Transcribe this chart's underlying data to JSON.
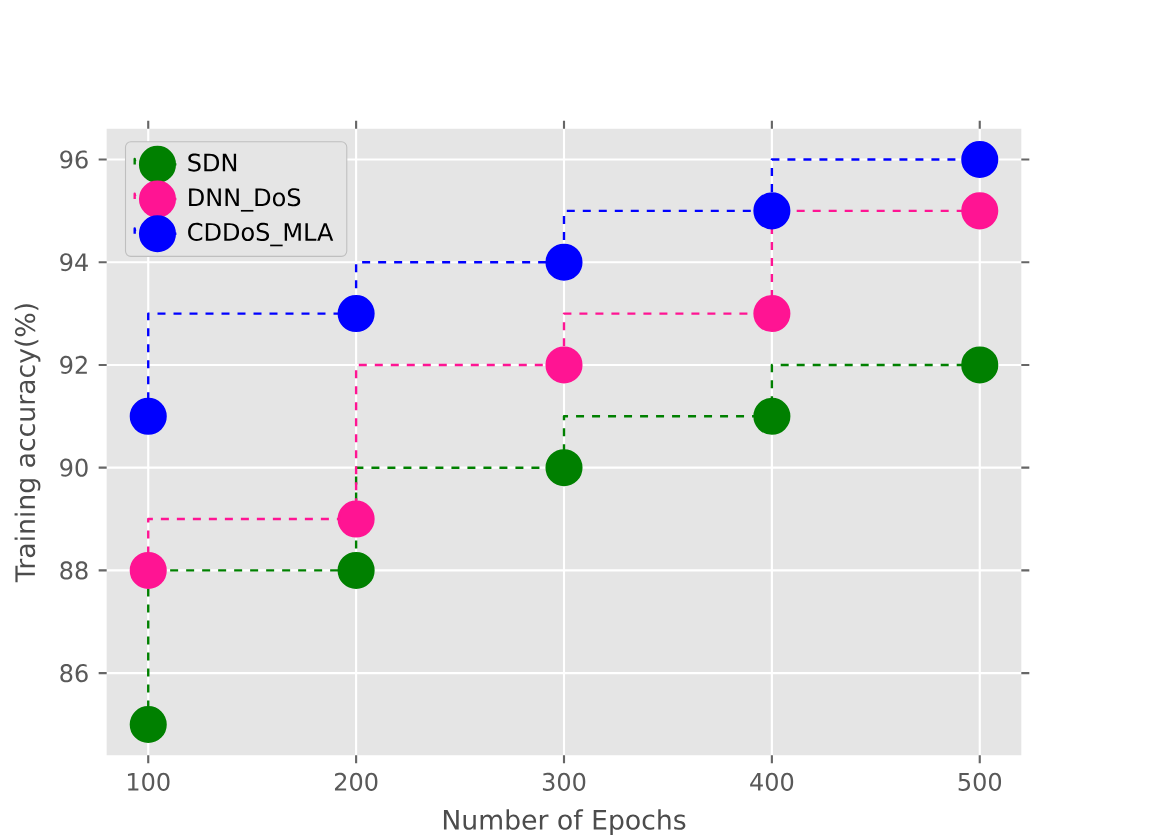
{
  "chart_data": {
    "type": "step",
    "xlabel": "Number of Epochs",
    "ylabel": "Training accuracy(%)",
    "x": [
      100,
      200,
      300,
      400,
      500
    ],
    "series": [
      {
        "name": "SDN",
        "color": "#008000",
        "values": [
          85,
          88,
          90,
          91,
          92
        ]
      },
      {
        "name": "DNN_DoS",
        "color": "#ff1493",
        "values": [
          88,
          89,
          92,
          93,
          95
        ]
      },
      {
        "name": "CDDoS_MLA",
        "color": "#0000ff",
        "values": [
          91,
          93,
          94,
          95,
          96
        ]
      }
    ],
    "xlim": [
      80,
      520
    ],
    "ylim": [
      84.4,
      96.6
    ],
    "xticks": [
      100,
      200,
      300,
      400,
      500
    ],
    "yticks": [
      86,
      88,
      90,
      92,
      94,
      96
    ],
    "grid": true,
    "legend": "top left",
    "marker": "circle",
    "line_style": "dashed"
  }
}
